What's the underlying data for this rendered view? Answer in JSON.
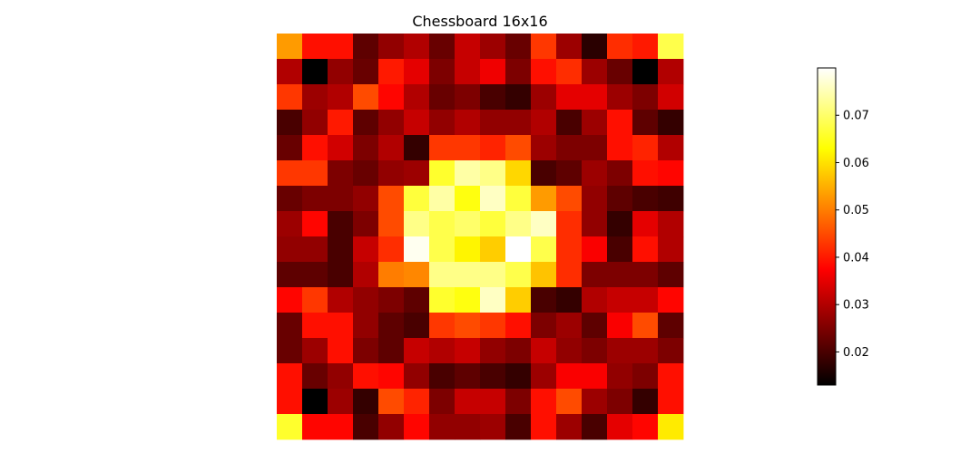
{
  "chart_data": {
    "type": "heatmap",
    "title": "Chessboard 16x16",
    "colormap": "hot",
    "rows": 16,
    "cols": 16,
    "vmin": 0.013,
    "vmax": 0.08,
    "colorbar": {
      "ticks": [
        0.02,
        0.03,
        0.04,
        0.05,
        0.06,
        0.07
      ],
      "tick_labels": [
        "0.02",
        "0.03",
        "0.04",
        "0.05",
        "0.06",
        "0.07"
      ],
      "placement": "right"
    },
    "axes_visible": false,
    "values": [
      [
        0.053,
        0.039,
        0.039,
        0.022,
        0.027,
        0.03,
        0.023,
        0.032,
        0.028,
        0.023,
        0.043,
        0.028,
        0.017,
        0.042,
        0.04,
        0.068
      ],
      [
        0.03,
        0.013,
        0.027,
        0.023,
        0.04,
        0.035,
        0.025,
        0.032,
        0.036,
        0.025,
        0.039,
        0.042,
        0.028,
        0.023,
        0.013,
        0.03
      ],
      [
        0.043,
        0.028,
        0.03,
        0.045,
        0.038,
        0.03,
        0.023,
        0.025,
        0.02,
        0.018,
        0.028,
        0.035,
        0.035,
        0.028,
        0.025,
        0.033
      ],
      [
        0.02,
        0.027,
        0.04,
        0.022,
        0.027,
        0.032,
        0.027,
        0.03,
        0.027,
        0.027,
        0.03,
        0.02,
        0.028,
        0.039,
        0.022,
        0.018
      ],
      [
        0.023,
        0.039,
        0.033,
        0.025,
        0.03,
        0.018,
        0.043,
        0.043,
        0.041,
        0.045,
        0.028,
        0.025,
        0.025,
        0.039,
        0.041,
        0.03
      ],
      [
        0.043,
        0.043,
        0.025,
        0.023,
        0.027,
        0.028,
        0.066,
        0.074,
        0.072,
        0.059,
        0.02,
        0.022,
        0.028,
        0.025,
        0.039,
        0.038
      ],
      [
        0.023,
        0.025,
        0.025,
        0.027,
        0.045,
        0.067,
        0.074,
        0.064,
        0.076,
        0.067,
        0.053,
        0.045,
        0.027,
        0.022,
        0.02,
        0.019
      ],
      [
        0.028,
        0.038,
        0.02,
        0.025,
        0.045,
        0.072,
        0.068,
        0.07,
        0.067,
        0.072,
        0.076,
        0.042,
        0.027,
        0.018,
        0.035,
        0.03
      ],
      [
        0.027,
        0.027,
        0.02,
        0.032,
        0.042,
        0.079,
        0.068,
        0.062,
        0.058,
        0.08,
        0.068,
        0.042,
        0.037,
        0.02,
        0.039,
        0.03
      ],
      [
        0.022,
        0.022,
        0.02,
        0.03,
        0.05,
        0.051,
        0.072,
        0.072,
        0.072,
        0.068,
        0.057,
        0.042,
        0.025,
        0.025,
        0.025,
        0.022
      ],
      [
        0.038,
        0.043,
        0.03,
        0.027,
        0.025,
        0.022,
        0.066,
        0.064,
        0.076,
        0.058,
        0.02,
        0.018,
        0.03,
        0.032,
        0.032,
        0.038
      ],
      [
        0.023,
        0.039,
        0.039,
        0.027,
        0.022,
        0.02,
        0.043,
        0.045,
        0.043,
        0.039,
        0.025,
        0.028,
        0.022,
        0.037,
        0.045,
        0.022
      ],
      [
        0.023,
        0.028,
        0.039,
        0.025,
        0.022,
        0.032,
        0.03,
        0.032,
        0.027,
        0.025,
        0.032,
        0.027,
        0.025,
        0.028,
        0.028,
        0.025
      ],
      [
        0.039,
        0.023,
        0.027,
        0.039,
        0.038,
        0.027,
        0.02,
        0.022,
        0.02,
        0.018,
        0.028,
        0.037,
        0.037,
        0.027,
        0.025,
        0.039
      ],
      [
        0.039,
        0.013,
        0.028,
        0.018,
        0.045,
        0.041,
        0.025,
        0.032,
        0.032,
        0.025,
        0.039,
        0.045,
        0.028,
        0.025,
        0.018,
        0.039
      ],
      [
        0.066,
        0.038,
        0.038,
        0.02,
        0.027,
        0.038,
        0.027,
        0.027,
        0.028,
        0.02,
        0.039,
        0.028,
        0.02,
        0.035,
        0.038,
        0.061
      ]
    ]
  }
}
